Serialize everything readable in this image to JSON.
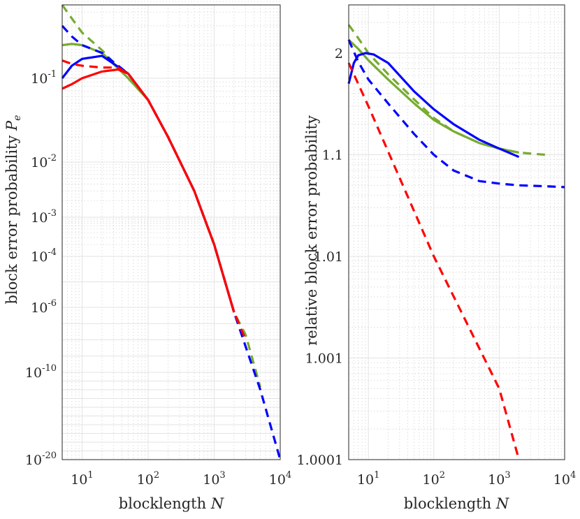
{
  "colors": {
    "green": "#77ac30",
    "blue": "#0000ff",
    "red": "#ff0000",
    "axis": "#262626"
  },
  "chart_data": [
    {
      "type": "line",
      "id": "left",
      "xlabel": "blocklength",
      "xlabel_var": "N",
      "ylabel": "block error probability",
      "ylabel_var": "P",
      "ylabel_sub": "e",
      "xscale": "log",
      "yscale": "custom",
      "xlim": [
        5,
        10000
      ],
      "x_ticks": [
        {
          "base": "10",
          "exp": "1",
          "value": 10
        },
        {
          "base": "10",
          "exp": "2",
          "value": 100
        },
        {
          "base": "10",
          "exp": "3",
          "value": 1000
        },
        {
          "base": "10",
          "exp": "4",
          "value": 10000
        }
      ],
      "y_ticks": [
        {
          "base": "10",
          "exp": "-20"
        },
        {
          "base": "10",
          "exp": "-10"
        },
        {
          "base": "10",
          "exp": "-6"
        },
        {
          "base": "10",
          "exp": "-4"
        },
        {
          "base": "10",
          "exp": "-3"
        },
        {
          "base": "10",
          "exp": "-2"
        },
        {
          "base": "10",
          "exp": "-1"
        }
      ],
      "y_axis_scale": "nonlinear; tick labels top to bottom read 10^-1, 10^-2, 10^-3, 10^-4, 10^-6, 10^-10, 10^-20",
      "series": [
        {
          "name": "green solid",
          "color": "green",
          "style": "solid",
          "x": [
            5,
            7,
            10,
            20,
            50,
            100,
            200,
            500,
            1000,
            2000
          ],
          "y": [
            0.2,
            0.205,
            0.2,
            0.17,
            0.1,
            0.055,
            0.02,
            0.003,
            0.0002,
            5e-07
          ]
        },
        {
          "name": "green dashed",
          "color": "green",
          "style": "dashed",
          "x": [
            5,
            7,
            10,
            20,
            50,
            100,
            200,
            500,
            1000,
            2000,
            3000,
            5000
          ],
          "y": [
            0.5,
            0.35,
            0.26,
            0.18,
            0.1,
            0.055,
            0.02,
            0.003,
            0.0002,
            5e-07,
            2e-08,
            2e-12
          ]
        },
        {
          "name": "blue solid",
          "color": "blue",
          "style": "solid",
          "x": [
            5,
            7,
            10,
            20,
            50,
            100,
            200,
            500,
            1000,
            2000
          ],
          "y": [
            0.1,
            0.13,
            0.15,
            0.16,
            0.11,
            0.055,
            0.02,
            0.003,
            0.0002,
            5e-07
          ]
        },
        {
          "name": "blue dashed",
          "color": "blue",
          "style": "dashed",
          "x": [
            5,
            7,
            10,
            20,
            50,
            100,
            200,
            500,
            1000,
            2000,
            5000,
            10000
          ],
          "y": [
            0.3,
            0.24,
            0.2,
            0.17,
            0.11,
            0.055,
            0.02,
            0.003,
            0.0002,
            5e-07,
            1e-12,
            1e-20
          ]
        },
        {
          "name": "red solid",
          "color": "red",
          "style": "solid",
          "x": [
            5,
            7,
            10,
            20,
            35,
            50,
            100,
            200,
            500,
            1000,
            2000
          ],
          "y": [
            0.075,
            0.085,
            0.1,
            0.115,
            0.12,
            0.11,
            0.055,
            0.02,
            0.003,
            0.0002,
            5e-07
          ]
        },
        {
          "name": "red dashed",
          "color": "red",
          "style": "dashed",
          "x": [
            5,
            7,
            10,
            20,
            35,
            50,
            100,
            200,
            500,
            1000,
            2000,
            3000
          ],
          "y": [
            0.145,
            0.135,
            0.13,
            0.125,
            0.125,
            0.11,
            0.055,
            0.02,
            0.003,
            0.0002,
            5e-07,
            1e-08
          ]
        }
      ]
    },
    {
      "type": "line",
      "id": "right",
      "xlabel": "blocklength",
      "xlabel_var": "N",
      "ylabel": "relative block error probability",
      "xscale": "log",
      "yscale": "log of (y - 1)",
      "xlim": [
        5,
        10000
      ],
      "ylim": [
        1.0001,
        3.1
      ],
      "x_ticks": [
        {
          "base": "10",
          "exp": "1",
          "value": 10
        },
        {
          "base": "10",
          "exp": "2",
          "value": 100
        },
        {
          "base": "10",
          "exp": "3",
          "value": 1000
        },
        {
          "base": "10",
          "exp": "4",
          "value": 10000
        }
      ],
      "y_ticks": [
        {
          "label": "2",
          "value": 2
        },
        {
          "label": "1.1",
          "value": 1.1
        },
        {
          "label": "1.01",
          "value": 1.01
        },
        {
          "label": "1.001",
          "value": 1.001
        },
        {
          "label": "1.0001",
          "value": 1.0001
        }
      ],
      "series": [
        {
          "name": "green solid",
          "color": "green",
          "style": "solid",
          "x": [
            5,
            7,
            10,
            20,
            50,
            100,
            200,
            500,
            1000,
            2000
          ],
          "y": [
            2.35,
            2.1,
            1.85,
            1.55,
            1.32,
            1.22,
            1.17,
            1.13,
            1.115,
            1.105
          ]
        },
        {
          "name": "green dashed",
          "color": "green",
          "style": "dashed",
          "x": [
            5,
            7,
            10,
            20,
            50,
            100,
            200,
            500,
            1000,
            2000,
            5000
          ],
          "y": [
            2.9,
            2.4,
            2.0,
            1.62,
            1.35,
            1.23,
            1.17,
            1.13,
            1.115,
            1.105,
            1.1
          ]
        },
        {
          "name": "blue solid",
          "color": "blue",
          "style": "solid",
          "x": [
            5,
            6,
            7,
            9,
            12,
            20,
            50,
            100,
            200,
            500,
            1000,
            2000
          ],
          "y": [
            1.5,
            1.8,
            1.95,
            2.0,
            1.97,
            1.8,
            1.42,
            1.28,
            1.2,
            1.14,
            1.115,
            1.095
          ]
        },
        {
          "name": "blue dashed",
          "color": "blue",
          "style": "dashed",
          "x": [
            5,
            7,
            10,
            20,
            50,
            100,
            200,
            500,
            1000,
            2000,
            5000,
            10000
          ],
          "y": [
            2.35,
            1.82,
            1.55,
            1.32,
            1.16,
            1.1,
            1.07,
            1.055,
            1.052,
            1.05,
            1.049,
            1.048
          ]
        },
        {
          "name": "red dashed",
          "color": "red",
          "style": "dashed",
          "x": [
            5,
            10,
            100,
            1000,
            2000
          ],
          "y": [
            1.8,
            1.3,
            1.01,
            1.0005,
            1.0001
          ]
        }
      ]
    }
  ]
}
